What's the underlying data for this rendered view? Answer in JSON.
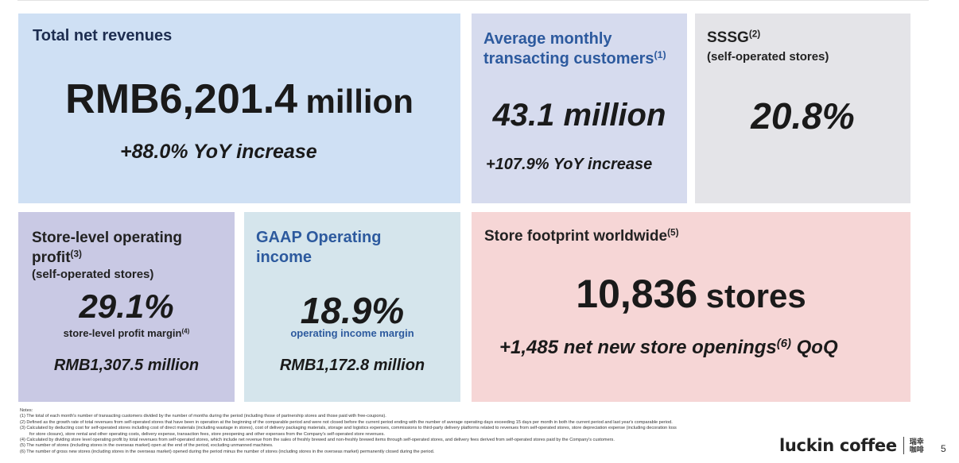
{
  "revenue": {
    "title": "Total net revenues",
    "value": "RMB6,201.4",
    "unit": "million",
    "growth": "+88.0% YoY increase"
  },
  "customers": {
    "title_line1": "Average monthly",
    "title_line2": "transacting customers",
    "title_sup": "(1)",
    "value": "43.1 million",
    "growth": "+107.9% YoY increase"
  },
  "sssg": {
    "title": "SSSG",
    "title_sup": "(2)",
    "subtitle": "(self-operated stores)",
    "value": "20.8%"
  },
  "store_profit": {
    "title_line1": "Store-level operating",
    "title_line2": "profit",
    "title_sup": "(3)",
    "subtitle": "(self-operated stores)",
    "value": "29.1%",
    "label": "store-level profit margin",
    "label_sup": "(4)",
    "amount": "RMB1,307.5 million"
  },
  "gaap": {
    "title_line1": "GAAP Operating",
    "title_line2": "income",
    "value": "18.9%",
    "label": "operating income margin",
    "amount": "RMB1,172.8 million"
  },
  "stores": {
    "title": "Store footprint worldwide",
    "title_sup": "(5)",
    "value": "10,836",
    "unit": "stores",
    "growth_prefix": "+1,485 net new store openings",
    "growth_sup": "(6)",
    "growth_suffix": "QoQ"
  },
  "notes": {
    "heading": "Notes:",
    "n1": "(1)  The total of each month's number of transacting customers divided by the number of months during the period (including those of partnership stores and those paid with free-coupons).",
    "n2": "(2)  Defined as the growth rate of total revenues from self-operated stores that have been in operation at the beginning of the comparable period and were not closed before the current period ending with the number of average operating days exceeding 15 days per month in both the current period and last year's comparable period.",
    "n3a": "(3)  Calculated by deducting cost for self-operated stores including cost of direct materials (including wastage in stores), cost of delivery packaging materials, storage and logistics expenses, commissions to third-party delivery platforms related to revenues from self-operated stores, store depreciation expense (including decoration loss",
    "n3b": "for store closure), store rental and other operating costs, delivery expense, transaction fees, store preopening and other expenses from the Company's self-operated store revenues.",
    "n4": "(4)  Calculated by dividing store level operating profit by total revenues from self-operated stores, which include net revenue from the sales of freshly brewed and non-freshly brewed items through self-operated stores, and delivery fees derived from self-operated stores paid by the Company's customers.",
    "n5": "(5)  The number of stores (including stores in the overseas market) open at the end of the period, excluding unmanned machines.",
    "n6": "(6)  The number of gross new stores (including stores in the overseas market) opened during the period minus the number of stores (including stores in the overseas market) permanently closed during the period."
  },
  "brand": {
    "name": "luckin coffee",
    "cn_line1": "瑞幸",
    "cn_line2": "咖啡"
  },
  "page_number": "5"
}
